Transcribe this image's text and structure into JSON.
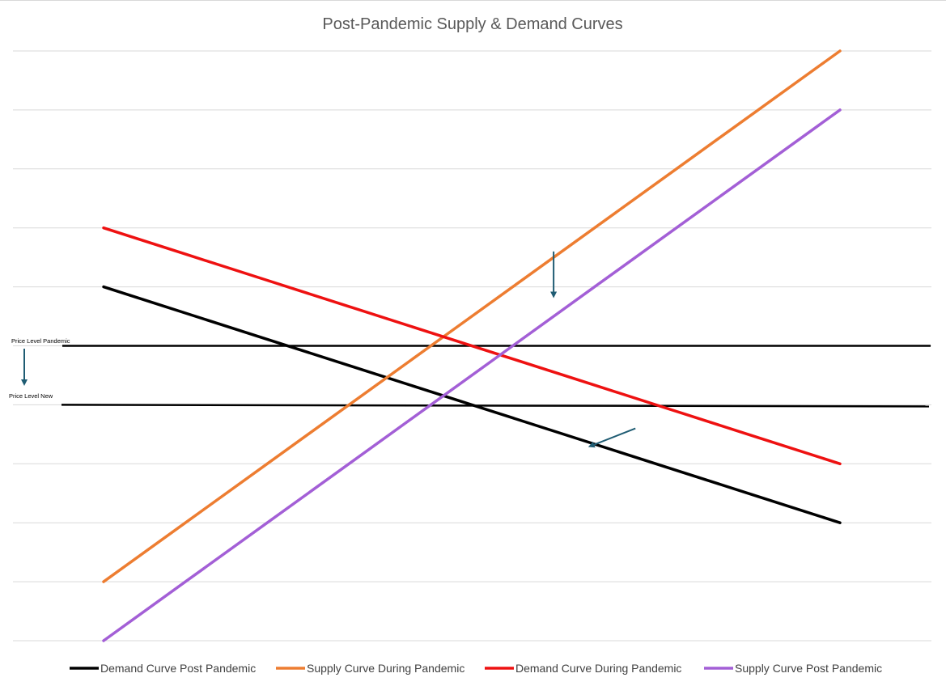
{
  "chart_data": {
    "type": "line",
    "title": "Post-Pandemic Supply & Demand Curves",
    "xlabel": "",
    "ylabel": "",
    "x": [
      0,
      1,
      2,
      3,
      4,
      5,
      6,
      7,
      8,
      9
    ],
    "ylim": [
      0,
      10
    ],
    "grid": true,
    "legend_position": "bottom",
    "series": [
      {
        "name": "Demand Curve Post Pandemic",
        "color": "#000000",
        "values": [
          6,
          5.556,
          5.111,
          4.667,
          4.222,
          3.778,
          3.333,
          2.889,
          2.444,
          2
        ]
      },
      {
        "name": "Supply Curve During Pandemic",
        "color": "#ED7D31",
        "values": [
          1,
          2,
          3,
          4,
          5,
          6,
          7,
          8,
          9,
          10
        ]
      },
      {
        "name": "Demand Curve During Pandemic",
        "color": "#EE1111",
        "values": [
          7,
          6.556,
          6.111,
          5.667,
          5.222,
          4.778,
          4.333,
          3.889,
          3.444,
          3
        ]
      },
      {
        "name": "Supply Curve Post Pandemic",
        "color": "#A35FD6",
        "values": [
          0,
          1,
          2,
          3,
          4,
          5,
          6,
          7,
          8,
          9
        ]
      }
    ],
    "price_levels": [
      {
        "label": "Price Level Pandemic",
        "value": 5
      },
      {
        "label": "Price Level New",
        "value": 4
      }
    ],
    "shift_arrows": [
      {
        "name": "supply-shift-arrow",
        "from": [
          5.5,
          6.6
        ],
        "to": [
          5.5,
          5.85
        ]
      },
      {
        "name": "demand-shift-arrow",
        "from": [
          6.5,
          3.6
        ],
        "to": [
          5.95,
          3.3
        ]
      },
      {
        "name": "price-level-arrow"
      }
    ],
    "accent_color": "#1F5C73"
  }
}
